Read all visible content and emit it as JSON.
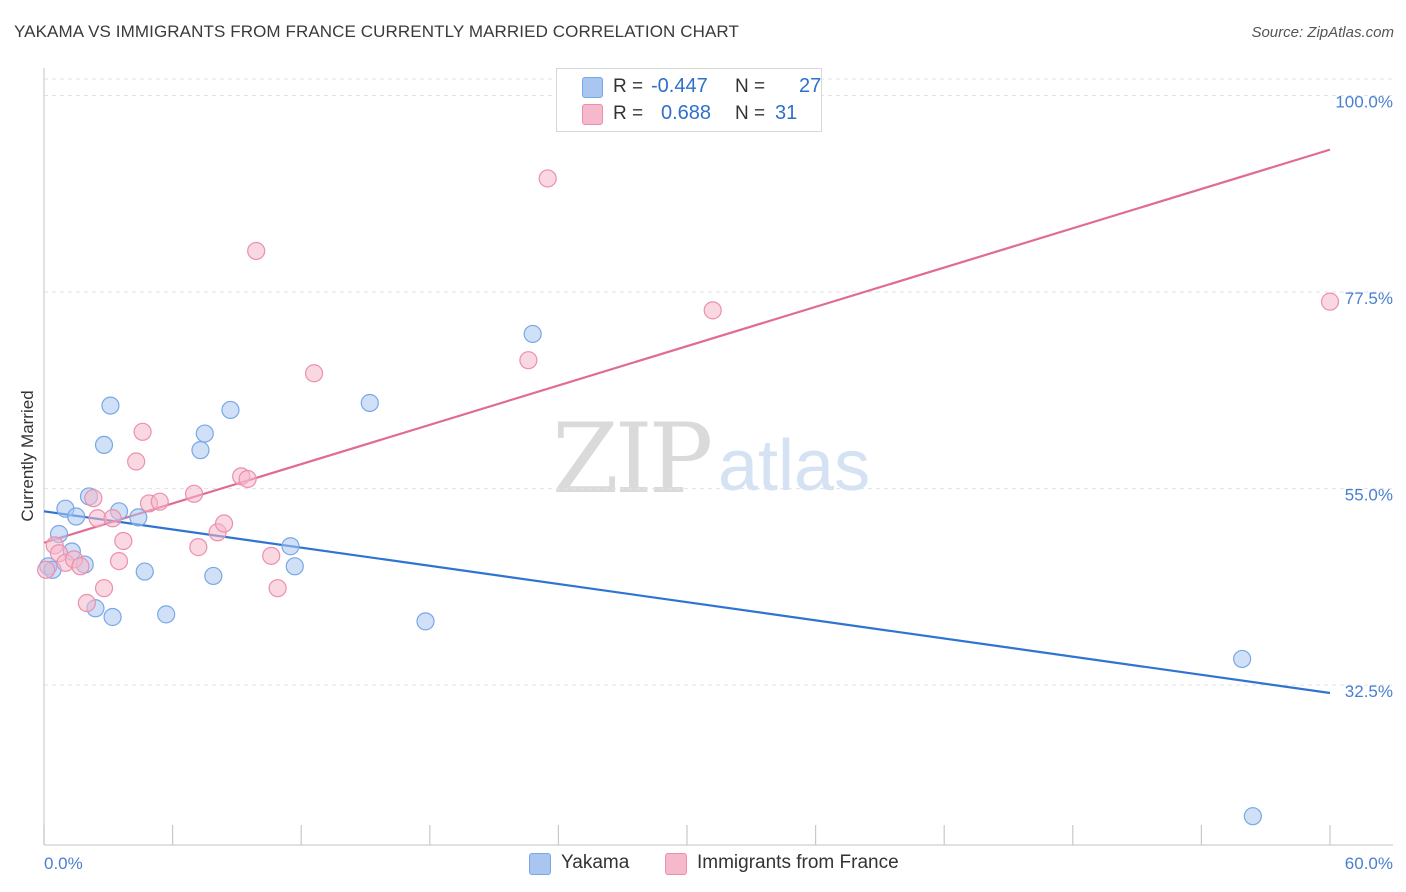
{
  "title": "YAKAMA VS IMMIGRANTS FROM FRANCE CURRENTLY MARRIED CORRELATION CHART",
  "source": "Source: ZipAtlas.com",
  "watermark": {
    "zip": "ZIP",
    "atlas": "atlas"
  },
  "legend": {
    "r_label": "R =",
    "n_label": "N =",
    "rows": [
      {
        "series": "Yakama",
        "r": "-0.447",
        "n": "27",
        "color": "#a8c6f0"
      },
      {
        "series": "Immigrants from France",
        "r": "0.688",
        "n": "31",
        "color": "#f6b8cb"
      }
    ]
  },
  "bottom_legend": [
    "Yakama",
    "Immigrants from France"
  ],
  "chart_data": {
    "type": "scatter",
    "title": "YAKAMA VS IMMIGRANTS FROM FRANCE CURRENTLY MARRIED CORRELATION CHART",
    "xlabel": "",
    "ylabel": "Currently Married",
    "xlim": [
      0,
      60
    ],
    "ylim": [
      14.2,
      102
    ],
    "x_tick_labels": [
      "0.0%",
      "60.0%"
    ],
    "y_ticks": [
      32.5,
      55.0,
      77.5,
      100.0
    ],
    "y_tick_labels": [
      "32.5%",
      "55.0%",
      "77.5%",
      "100.0%"
    ],
    "grid": true,
    "legend_position": "top-center",
    "series": [
      {
        "name": "Yakama",
        "color": "#a8c6f0",
        "stroke": "#7aa7e6",
        "trend_color": "#2f74d0",
        "trend": {
          "x": [
            0,
            60
          ],
          "y": [
            52.4,
            31.6
          ]
        },
        "points": [
          [
            0.2,
            46.1
          ],
          [
            0.7,
            49.8
          ],
          [
            1.0,
            52.7
          ],
          [
            1.3,
            47.8
          ],
          [
            1.5,
            51.8
          ],
          [
            1.9,
            46.3
          ],
          [
            2.1,
            54.1
          ],
          [
            2.4,
            41.3
          ],
          [
            2.8,
            60.0
          ],
          [
            3.1,
            64.5
          ],
          [
            3.2,
            40.3
          ],
          [
            3.5,
            52.4
          ],
          [
            4.4,
            51.7
          ],
          [
            4.7,
            45.5
          ],
          [
            5.7,
            40.6
          ],
          [
            7.3,
            59.4
          ],
          [
            7.5,
            61.3
          ],
          [
            7.9,
            45.0
          ],
          [
            8.7,
            64.0
          ],
          [
            11.5,
            48.4
          ],
          [
            11.7,
            46.1
          ],
          [
            15.2,
            64.8
          ],
          [
            17.8,
            39.8
          ],
          [
            22.8,
            72.7
          ],
          [
            55.9,
            35.5
          ],
          [
            56.4,
            17.5
          ],
          [
            0.4,
            45.7
          ]
        ]
      },
      {
        "name": "Immigrants from France",
        "color": "#f6b8cb",
        "stroke": "#ec8fae",
        "trend_color": "#e06c94",
        "trend": {
          "x": [
            0,
            60
          ],
          "y": [
            48.8,
            93.8
          ]
        },
        "points": [
          [
            0.1,
            45.7
          ],
          [
            0.5,
            48.5
          ],
          [
            0.7,
            47.6
          ],
          [
            1.0,
            46.5
          ],
          [
            1.4,
            46.9
          ],
          [
            1.7,
            46.1
          ],
          [
            2.0,
            41.9
          ],
          [
            2.3,
            53.9
          ],
          [
            2.5,
            51.6
          ],
          [
            2.8,
            43.6
          ],
          [
            3.2,
            51.6
          ],
          [
            3.5,
            46.7
          ],
          [
            3.7,
            49.0
          ],
          [
            4.3,
            58.1
          ],
          [
            4.6,
            61.5
          ],
          [
            4.9,
            53.3
          ],
          [
            5.4,
            53.5
          ],
          [
            7.0,
            54.4
          ],
          [
            7.2,
            48.3
          ],
          [
            8.1,
            50.0
          ],
          [
            8.4,
            51.0
          ],
          [
            9.2,
            56.4
          ],
          [
            9.5,
            56.1
          ],
          [
            9.9,
            82.2
          ],
          [
            10.6,
            47.3
          ],
          [
            10.9,
            43.6
          ],
          [
            12.6,
            68.2
          ],
          [
            22.6,
            69.7
          ],
          [
            23.5,
            90.5
          ],
          [
            31.2,
            75.4
          ],
          [
            60.0,
            76.4
          ]
        ]
      }
    ]
  }
}
